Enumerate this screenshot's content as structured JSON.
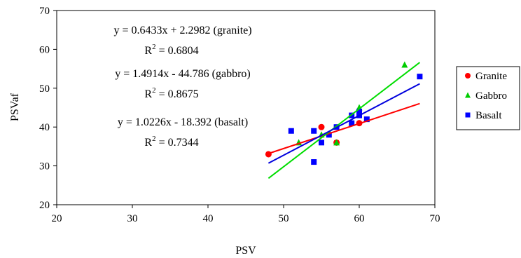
{
  "chart_data": {
    "type": "scatter",
    "xlabel": "PSV",
    "ylabel": "PSVaf",
    "xlim": [
      20,
      70
    ],
    "ylim": [
      20,
      70
    ],
    "x_ticks": [
      20,
      30,
      40,
      50,
      60,
      70
    ],
    "y_ticks": [
      20,
      30,
      40,
      50,
      60,
      70
    ],
    "grid": false,
    "legend_position": "right",
    "series": [
      {
        "name": "Granite",
        "marker": "circle",
        "color": "#ff0000",
        "points": [
          [
            48,
            33
          ],
          [
            55,
            40
          ],
          [
            57,
            36
          ],
          [
            60,
            41
          ]
        ],
        "trendline": {
          "slope": 0.6433,
          "intercept": 2.2982,
          "x_range": [
            48,
            68
          ],
          "color": "#ff0000"
        }
      },
      {
        "name": "Gabbro",
        "marker": "triangle",
        "color": "#00cc00",
        "points": [
          [
            52,
            36
          ],
          [
            55,
            38
          ],
          [
            57,
            36
          ],
          [
            59,
            41
          ],
          [
            60,
            45
          ],
          [
            66,
            56
          ]
        ],
        "trendline": {
          "slope": 1.4914,
          "intercept": -44.786,
          "x_range": [
            48,
            68
          ],
          "color": "#00dd00"
        }
      },
      {
        "name": "Basalt",
        "marker": "square",
        "color": "#0000ff",
        "points": [
          [
            51,
            39
          ],
          [
            54,
            39
          ],
          [
            54,
            31
          ],
          [
            55,
            36
          ],
          [
            56,
            38
          ],
          [
            57,
            40
          ],
          [
            59,
            41
          ],
          [
            59,
            43
          ],
          [
            60,
            43
          ],
          [
            60,
            44
          ],
          [
            61,
            42
          ],
          [
            68,
            53
          ]
        ],
        "trendline": {
          "slope": 1.0226,
          "intercept": -18.392,
          "x_range": [
            48,
            68
          ],
          "color": "#0000dd"
        }
      }
    ],
    "annotations": [
      {
        "equation": "y = 0.6433x + 2.2982 (granite)",
        "r2_base": "R",
        "r2_sup": "2",
        "r2_value": " = 0.6804"
      },
      {
        "equation": "y = 1.4914x - 44.786 (gabbro)",
        "r2_base": "R",
        "r2_sup": "2",
        "r2_value": " = 0.8675"
      },
      {
        "equation": "y = 1.0226x - 18.392 (basalt)",
        "r2_base": "R",
        "r2_sup": "2",
        "r2_value": " = 0.7344"
      }
    ]
  }
}
